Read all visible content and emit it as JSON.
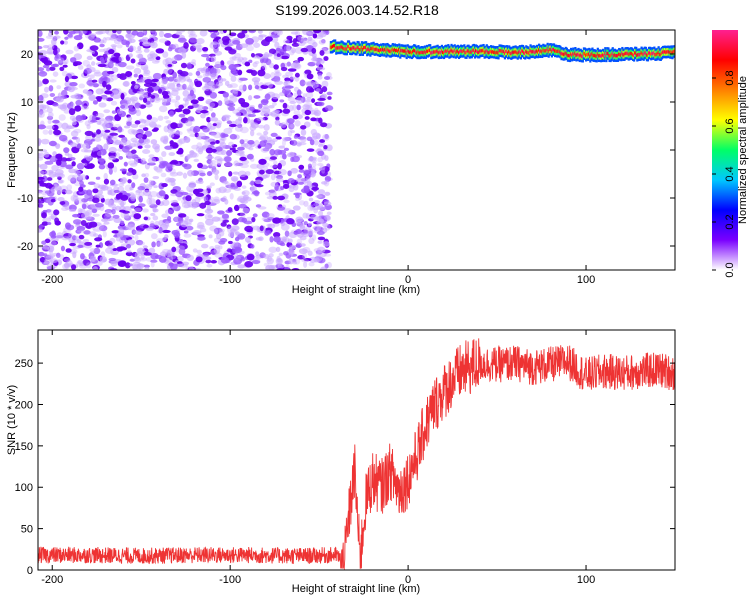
{
  "chart_data": [
    {
      "type": "heatmap",
      "title": "S199.2026.003.14.52.R18",
      "xlabel": "Height of straight line (km)",
      "ylabel": "Frequency (Hz)",
      "xlim": [
        -208,
        150
      ],
      "ylim": [
        -25,
        25
      ],
      "xticks": [
        -200,
        -100,
        0,
        100
      ],
      "yticks": [
        20,
        10,
        0,
        -10,
        -20
      ],
      "colorbar": {
        "label": "Normalized spectral amplitude",
        "range": [
          0,
          1
        ],
        "ticks": [
          0.0,
          0.2,
          0.4,
          0.6,
          0.8
        ],
        "tick_labels": [
          "0.0",
          "0.2",
          "0.4",
          "0.6",
          "0.8"
        ],
        "colormap": [
          "#ffffff",
          "#7a00ff",
          "#0000ff",
          "#00c8ff",
          "#00ff66",
          "#ffff00",
          "#ff8000",
          "#ff0000",
          "#ff2090"
        ]
      },
      "regions": [
        {
          "x_range": [
            -208,
            -44
          ],
          "freq_range": [
            -25,
            25
          ],
          "amplitude_range": [
            0.0,
            0.2
          ],
          "description_color": "#7a00ff"
        },
        {
          "x_range": [
            -44,
            150
          ],
          "freq_range": [
            18,
            23
          ],
          "amplitude_range": [
            0.3,
            1.0
          ],
          "description_color": "#ff0000"
        }
      ],
      "signal_track": {
        "x": [
          -44,
          -30,
          -20,
          -10,
          0,
          20,
          40,
          60,
          80,
          90,
          100,
          120,
          140,
          150
        ],
        "freq": [
          21.5,
          21.2,
          21.0,
          20.7,
          20.5,
          20.5,
          20.6,
          20.3,
          20.8,
          19.9,
          19.8,
          19.9,
          20.1,
          20.3
        ]
      }
    },
    {
      "type": "line",
      "xlabel": "Height of straight line (km)",
      "ylabel": "SNR (10 * v/v)",
      "xlim": [
        -208,
        150
      ],
      "ylim": [
        0,
        290
      ],
      "xticks": [
        -200,
        -100,
        0,
        100
      ],
      "yticks": [
        0,
        50,
        100,
        150,
        200,
        250
      ],
      "series": [
        {
          "color": "#ee3333",
          "x": [
            -208,
            -180,
            -150,
            -120,
            -90,
            -60,
            -40,
            -36,
            -33,
            -30,
            -27,
            -24,
            -20,
            -15,
            -10,
            -5,
            0,
            5,
            10,
            15,
            20,
            25,
            30,
            35,
            40,
            50,
            60,
            70,
            80,
            90,
            100,
            110,
            120,
            130,
            140,
            150
          ],
          "y": [
            18,
            18,
            17,
            18,
            18,
            17,
            18,
            5,
            70,
            120,
            10,
            80,
            110,
            100,
            120,
            95,
            110,
            140,
            175,
            200,
            215,
            230,
            240,
            245,
            250,
            248,
            250,
            245,
            248,
            252,
            235,
            240,
            238,
            240,
            242,
            238
          ],
          "noise_amplitude_low": 10,
          "noise_amplitude_transition": 35,
          "noise_amplitude_high": 22
        }
      ]
    }
  ]
}
